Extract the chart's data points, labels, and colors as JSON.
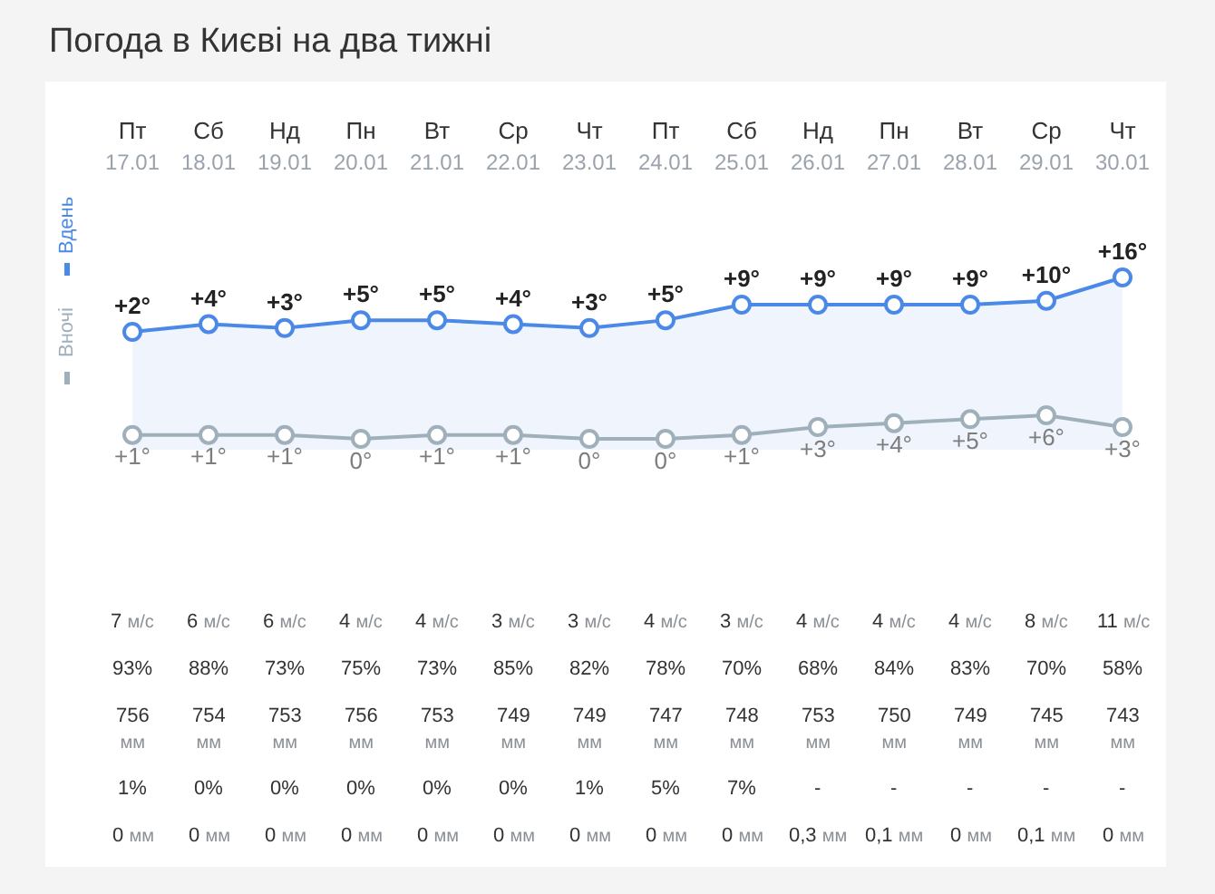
{
  "chart_data": [
    {
      "type": "area",
      "title": "Погода в Києві на два тижні",
      "categories": [
        "Пт\n17.01",
        "Сб\n18.01",
        "Нд\n19.01",
        "Пн\n20.01",
        "Вт\n21.01",
        "Ср\n22.01",
        "Чт\n23.01",
        "Пт\n24.01",
        "Сб\n25.01",
        "Нд\n26.01",
        "Пн\n27.01",
        "Вт\n28.01",
        "Ср\n29.01",
        "Чт\n30.01"
      ],
      "series": [
        {
          "name": "Вдень",
          "color": "#4a89e8",
          "values": [
            2,
            4,
            3,
            5,
            5,
            4,
            3,
            5,
            9,
            9,
            9,
            9,
            10,
            16
          ],
          "value_labels": [
            "+2°",
            "+4°",
            "+3°",
            "+5°",
            "+5°",
            "+4°",
            "+3°",
            "+5°",
            "+9°",
            "+9°",
            "+9°",
            "+9°",
            "+10°",
            "+16°"
          ]
        }
      ],
      "legend": "left",
      "marker": "circle",
      "line_style": "solid",
      "tick_labels": "x"
    },
    {
      "type": "line",
      "categories": [
        null,
        null,
        null,
        null,
        null,
        null,
        null,
        null,
        null,
        null,
        null,
        null,
        null,
        null
      ],
      "series": [
        {
          "name": "Вночі",
          "color": "#a0b0bb",
          "values": [
            1,
            1,
            1,
            0,
            1,
            1,
            0,
            0,
            1,
            3,
            4,
            5,
            6,
            3
          ],
          "value_labels": [
            "+1°",
            "+1°",
            "+1°",
            "0°",
            "+1°",
            "+1°",
            "0°",
            "0°",
            "+1°",
            "+3°",
            "+4°",
            "+5°",
            "+6°",
            "+3°"
          ]
        }
      ],
      "legend": "left",
      "marker": "circle",
      "line_style": "solid",
      "tick_labels": false
    },
    {
      "type": "other",
      "cell_labels": [
        [
          "7 м/с",
          "6 м/с",
          "6 м/с",
          "4 м/с",
          "4 м/с",
          "3 м/с",
          "3 м/с",
          "4 м/с",
          "3 м/с",
          "4 м/с",
          "4 м/с",
          "4 м/с",
          "8 м/с",
          "11 м/с"
        ],
        [
          "93%",
          "88%",
          "73%",
          "75%",
          "73%",
          "85%",
          "82%",
          "78%",
          "70%",
          "68%",
          "84%",
          "83%",
          "70%",
          "58%"
        ],
        [
          "756\nмм",
          "754\nмм",
          "753\nмм",
          "756\nмм",
          "753\nмм",
          "749\nмм",
          "749\nмм",
          "747\nмм",
          "748\nмм",
          "753\nмм",
          "750\nмм",
          "749\nмм",
          "745\nмм",
          "743\nмм"
        ],
        [
          "1%",
          "0%",
          "0%",
          "0%",
          "0%",
          "0%",
          "1%",
          "5%",
          "7%",
          "-",
          "-",
          "-",
          "-",
          "-"
        ],
        [
          "0 мм",
          "0 мм",
          "0 мм",
          "0 мм",
          "0 мм",
          "0 мм",
          "0 мм",
          "0 мм",
          "0 мм",
          "0,3 мм",
          "0,1 мм",
          "0 мм",
          "0,1 мм",
          "0 мм"
        ]
      ]
    }
  ]
}
